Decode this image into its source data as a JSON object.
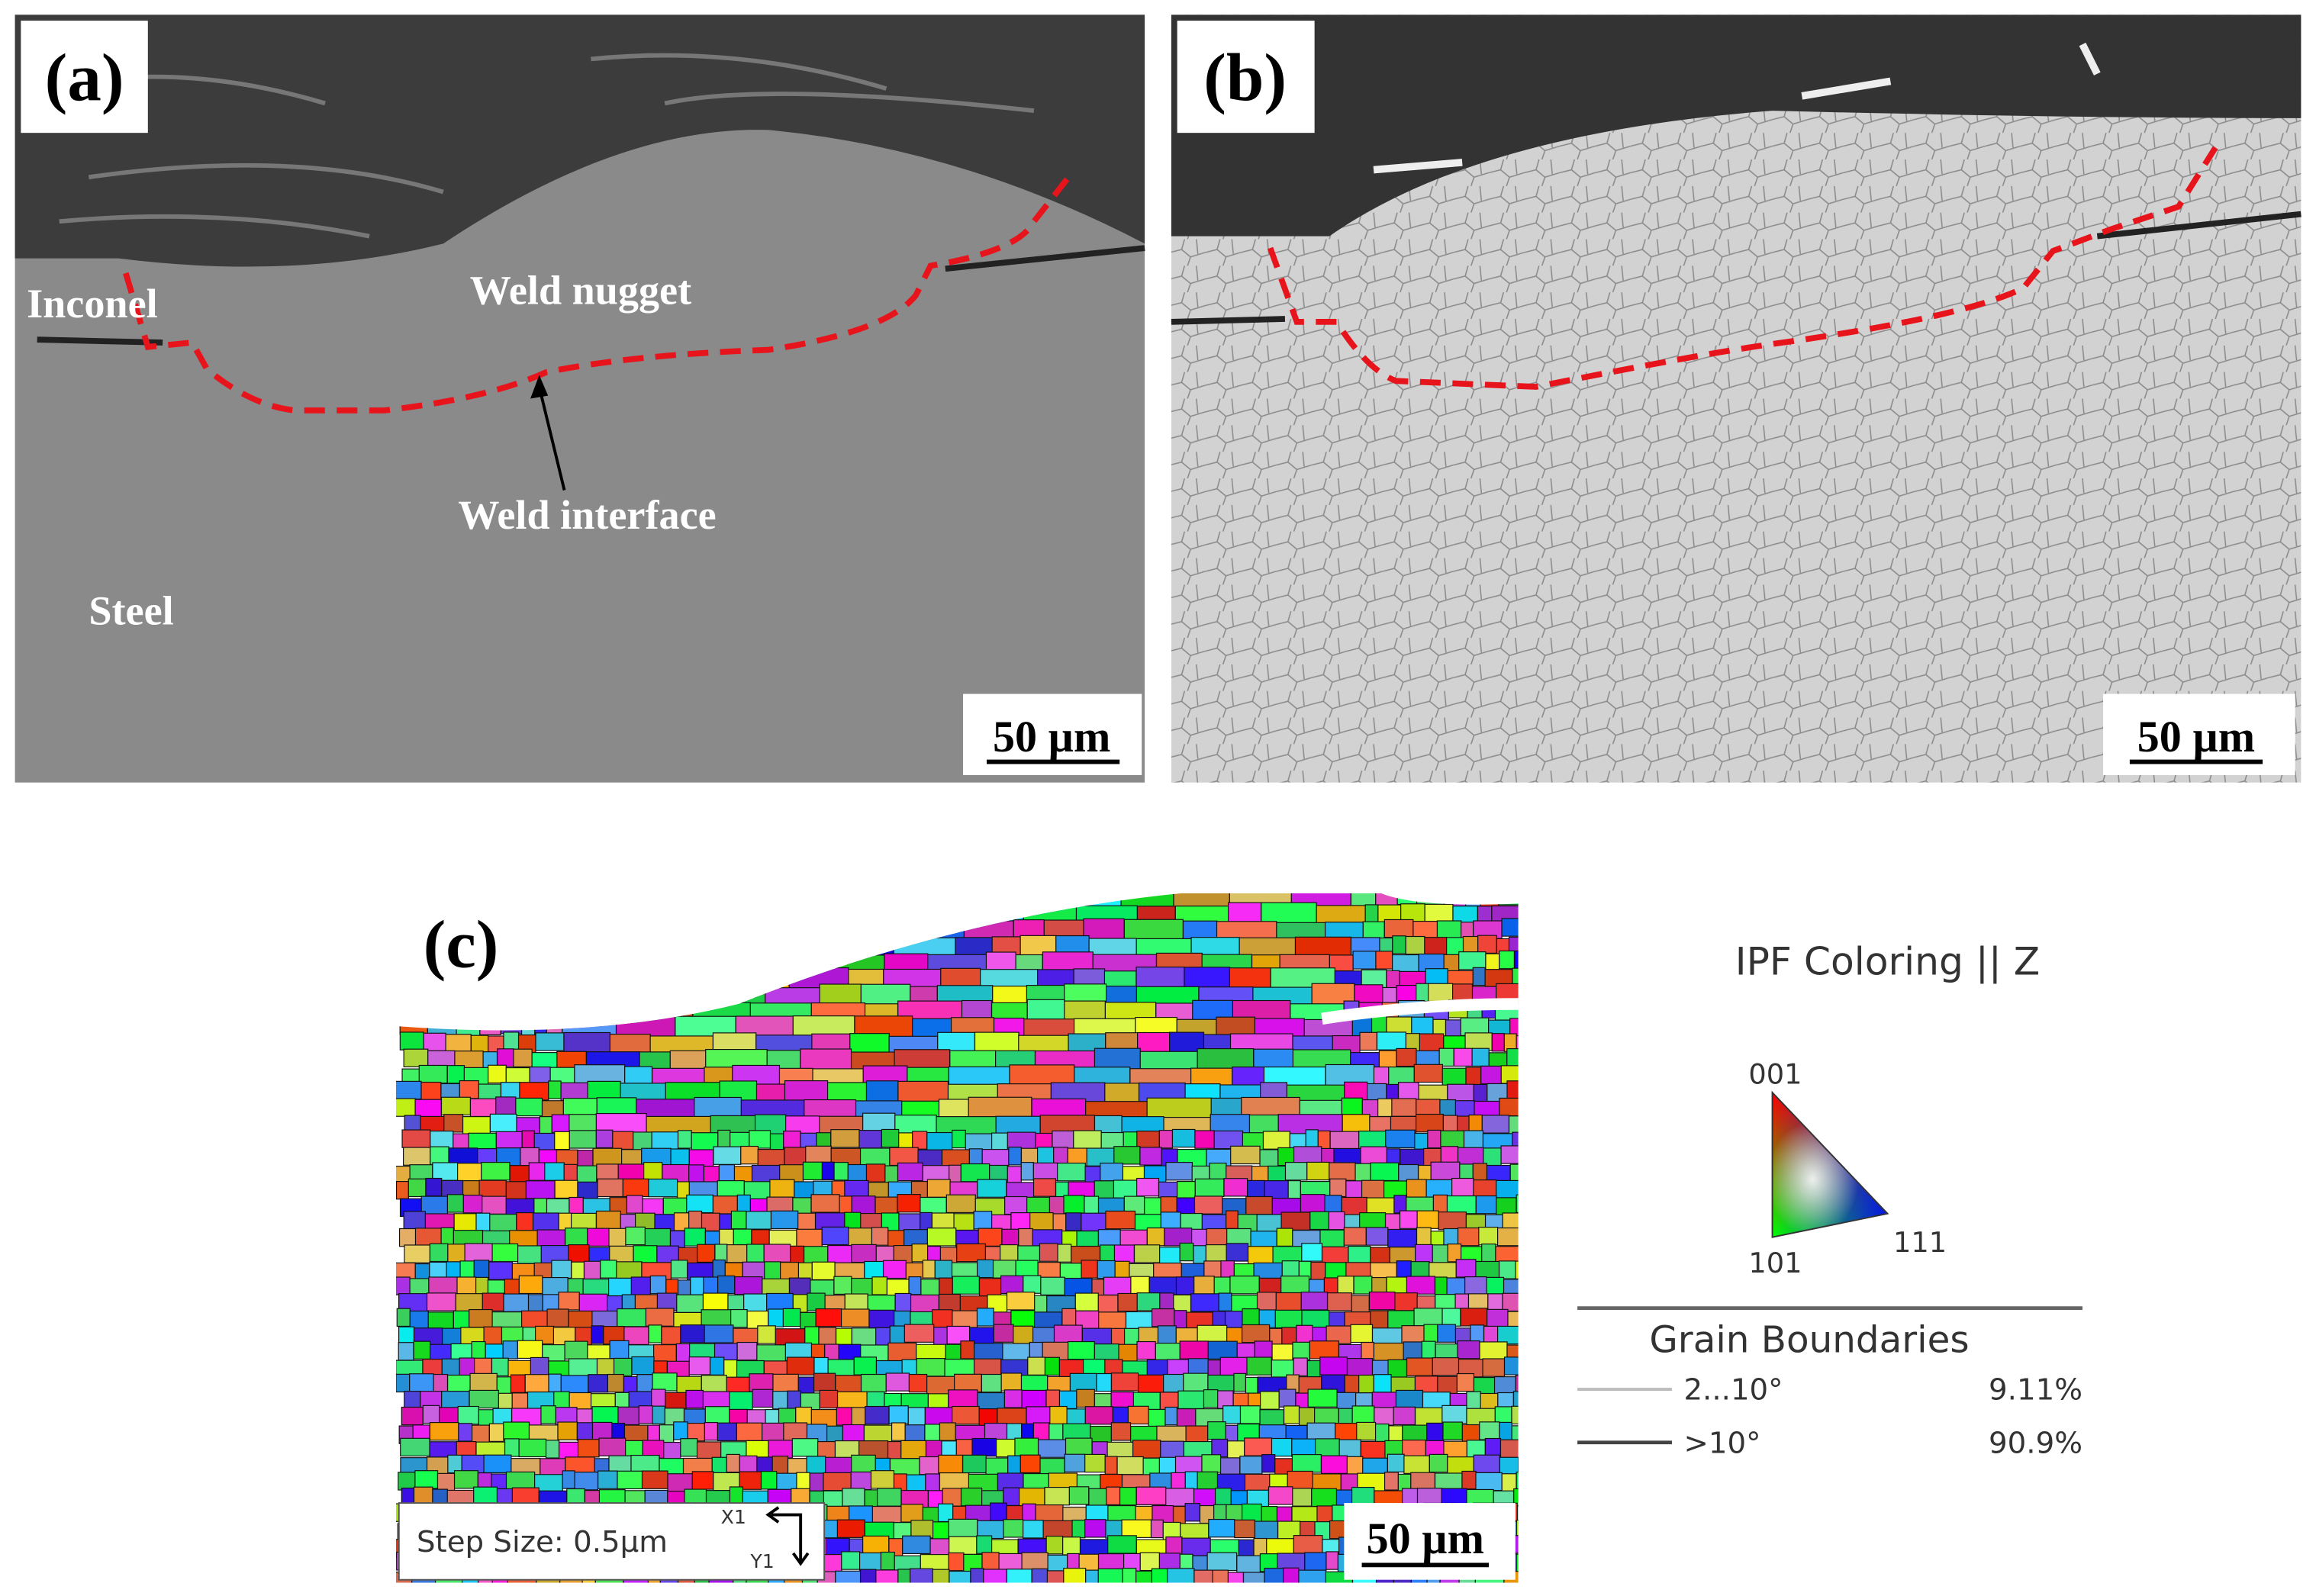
{
  "panels": [
    {
      "label": "(a)",
      "annotations": [
        "Inconel",
        "Weld nugget",
        "Weld interface",
        "Steel"
      ],
      "scale_bar": "50 µm"
    },
    {
      "label": "(b)",
      "scale_bar": "50 µm"
    },
    {
      "label": "(c)",
      "scale_bar": "50 µm",
      "step_size": "Step Size: 0.5µm",
      "axes": [
        "X1",
        "Y1"
      ]
    }
  ],
  "legend": {
    "title": "IPF Coloring || Z",
    "triangle": [
      "001",
      "101",
      "111"
    ],
    "grain_boundaries": {
      "title": "Grain Boundaries",
      "rows": [
        {
          "range": "2...10°",
          "fraction": "9.11%"
        },
        {
          "range": ">10°",
          "fraction": "90.9%"
        }
      ]
    }
  }
}
